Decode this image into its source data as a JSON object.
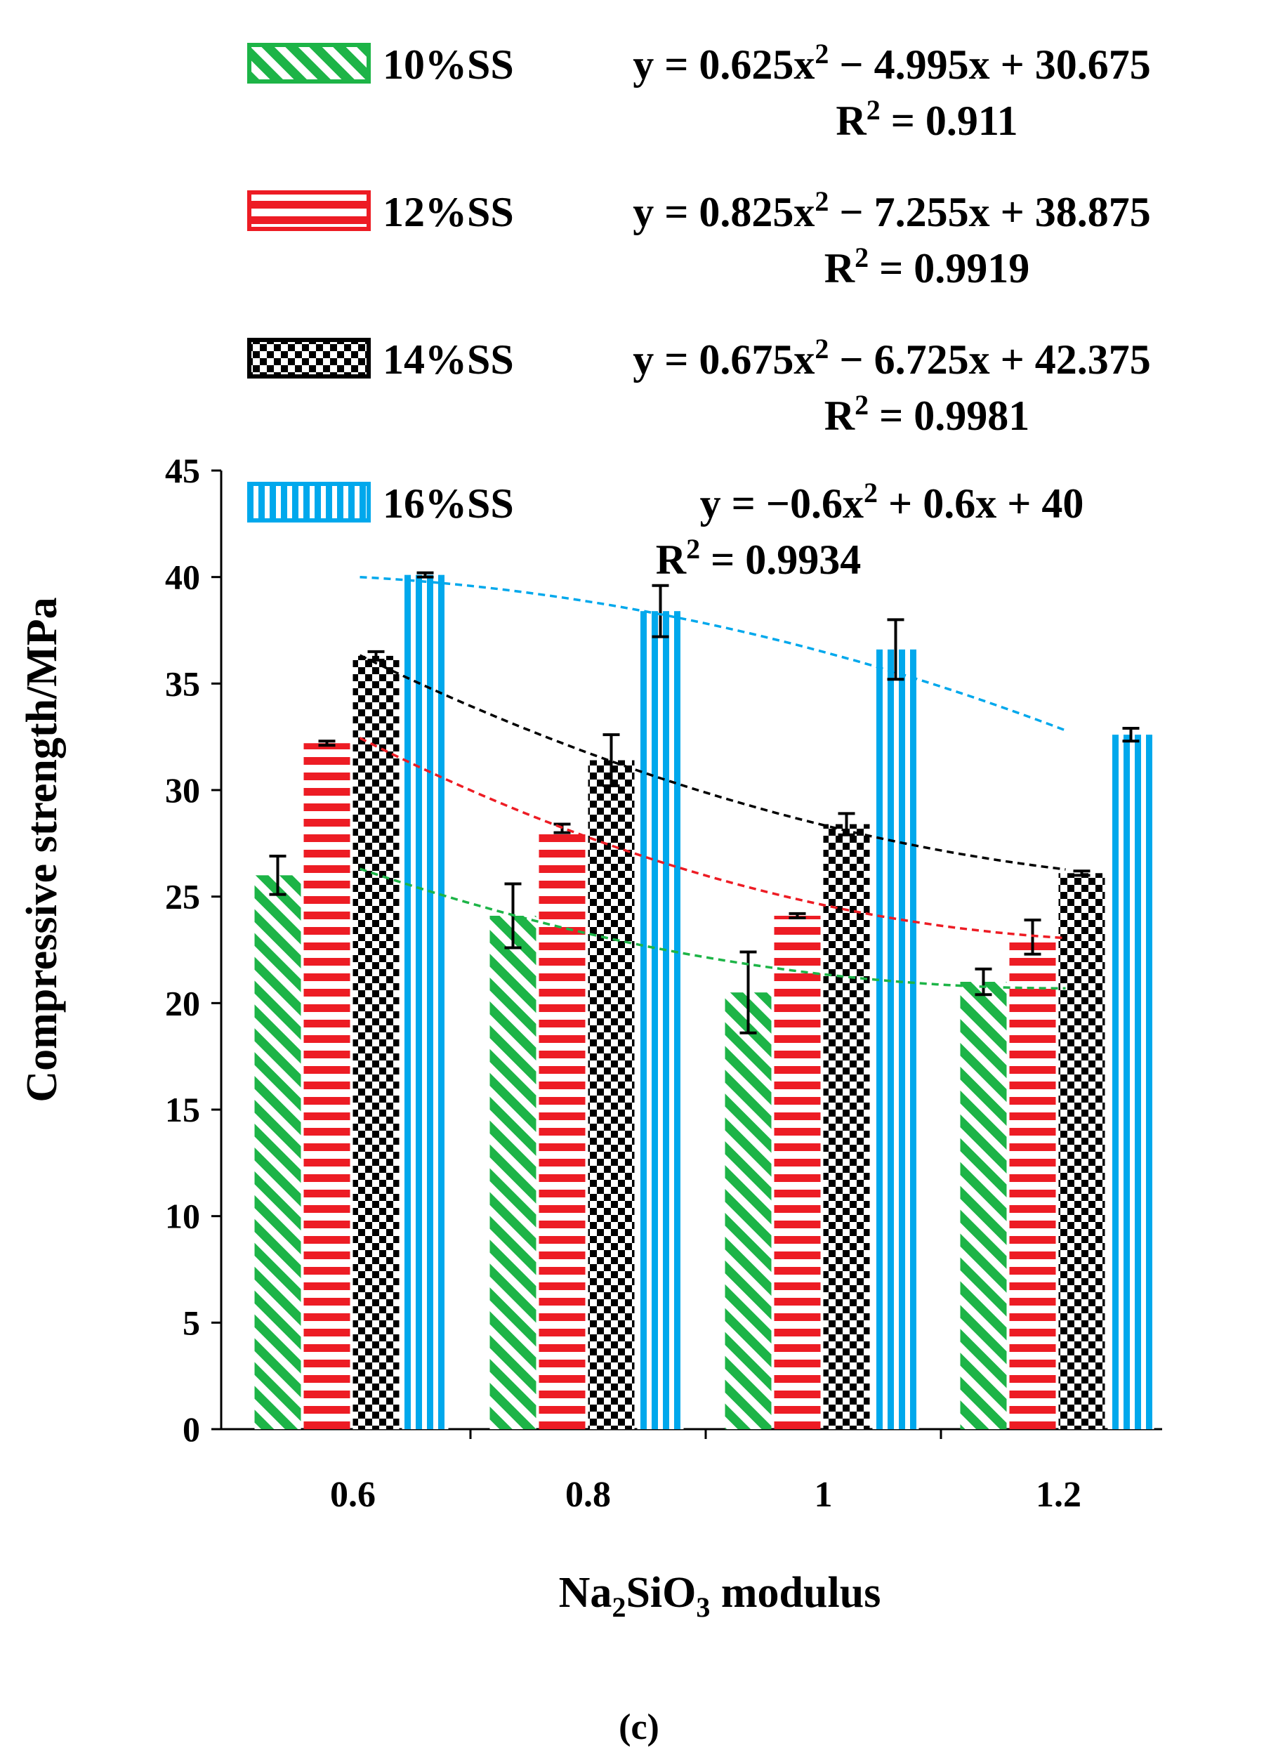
{
  "chart_data": {
    "type": "bar",
    "caption": "(c)",
    "xlabel_parts": [
      "Na",
      "2",
      "SiO",
      "3",
      " modulus"
    ],
    "ylabel": "Compressive strength/MPa",
    "ylim": [
      0,
      45
    ],
    "yticks": [
      "0",
      "5",
      "10",
      "15",
      "20",
      "25",
      "30",
      "35",
      "40",
      "45"
    ],
    "categories": [
      "0.6",
      "0.8",
      "1",
      "1.2"
    ],
    "x_values": [
      0.6,
      0.8,
      1.0,
      1.2
    ],
    "series": [
      {
        "name": "10%SS",
        "color": "#1db447",
        "pattern": "diagonal",
        "values": [
          26.0,
          24.1,
          20.5,
          21.0
        ],
        "errors": [
          0.9,
          1.5,
          1.9,
          0.6
        ],
        "fit": {
          "a": 0.625,
          "b": -4.995,
          "c": 30.675
        },
        "equation": [
          "y = 0.625x",
          "2",
          " − 4.995x + 30.675"
        ],
        "r2": [
          "R",
          "2",
          " = 0.911"
        ]
      },
      {
        "name": "12%SS",
        "color": "#ed1c24",
        "pattern": "horizontal",
        "values": [
          32.2,
          28.2,
          24.1,
          23.1
        ],
        "errors": [
          0.1,
          0.2,
          0.1,
          0.8
        ],
        "fit": {
          "a": 0.825,
          "b": -7.255,
          "c": 38.875
        },
        "equation": [
          "y = 0.825x",
          "2",
          " − 7.255x + 38.875"
        ],
        "r2": [
          "R",
          "2",
          " = 0.9919"
        ]
      },
      {
        "name": "14%SS",
        "color": "#000000",
        "pattern": "checker",
        "values": [
          36.3,
          31.4,
          28.4,
          26.1
        ],
        "errors": [
          0.2,
          1.2,
          0.5,
          0.1
        ],
        "fit": {
          "a": 0.675,
          "b": -6.725,
          "c": 42.375
        },
        "equation": [
          "y = 0.675x",
          "2",
          " − 6.725x + 42.375"
        ],
        "r2": [
          "R",
          "2",
          " = 0.9981"
        ]
      },
      {
        "name": "16%SS",
        "color": "#00a8ec",
        "pattern": "vertical",
        "values": [
          40.1,
          38.4,
          36.6,
          32.6
        ],
        "errors": [
          0.1,
          1.2,
          1.4,
          0.3
        ],
        "fit": {
          "a": -0.6,
          "b": 0.6,
          "c": 40
        },
        "equation": [
          "y = −0.6x",
          "2",
          " + 0.6x + 40"
        ],
        "r2": [
          "R",
          "2",
          " = 0.9934"
        ]
      }
    ]
  }
}
